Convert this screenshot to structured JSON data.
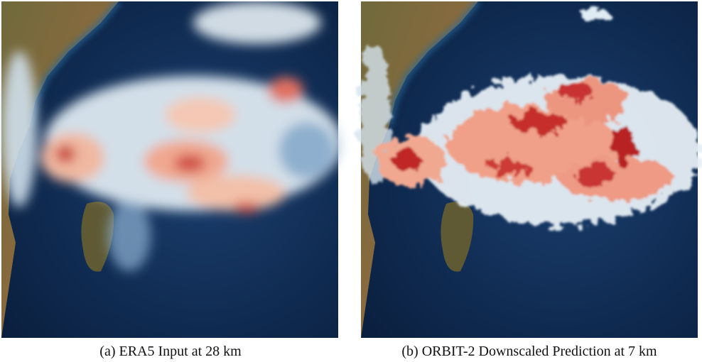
{
  "panels": [
    {
      "caption": "(a) ERA5 Input at 28 km"
    },
    {
      "caption": "(b) ORBIT-2 Downscaled Prediction at 7 km"
    }
  ]
}
